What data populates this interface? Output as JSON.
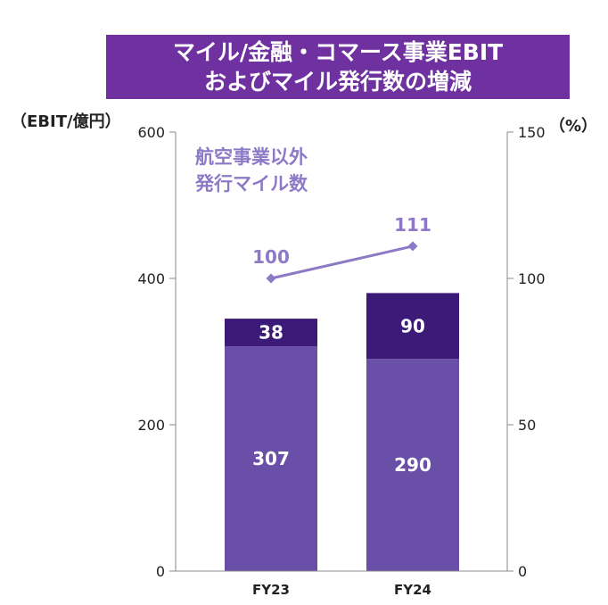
{
  "title": {
    "line1": "マイル/金融・コマース事業EBIT",
    "line2": "およびマイル発行数の増減"
  },
  "colors": {
    "title_bg": "#6f30a0",
    "bar_dark": "#3b1a78",
    "bar_light": "#6a4fa8",
    "line": "#8d7ac7",
    "axis": "#8a8a8a"
  },
  "chart_data": {
    "type": "bar",
    "stacked": true,
    "categories": [
      "FY23",
      "FY24"
    ],
    "series": [
      {
        "values": [
          307,
          290
        ],
        "color": "#6a4fa8"
      },
      {
        "values": [
          38,
          90
        ],
        "color": "#3b1a78"
      }
    ],
    "line_series": {
      "name_lines": [
        "航空事業以外",
        "発行マイル数"
      ],
      "values": [
        100,
        111
      ],
      "axis": "right",
      "color": "#8d7ac7"
    },
    "y_left": {
      "label": "（EBIT/億円）",
      "range": [
        0,
        600
      ],
      "ticks": [
        0,
        200,
        400,
        600
      ]
    },
    "y_right": {
      "label": "（%）",
      "range": [
        0,
        150
      ],
      "ticks": [
        0,
        50,
        100,
        150
      ]
    },
    "grid": false
  }
}
